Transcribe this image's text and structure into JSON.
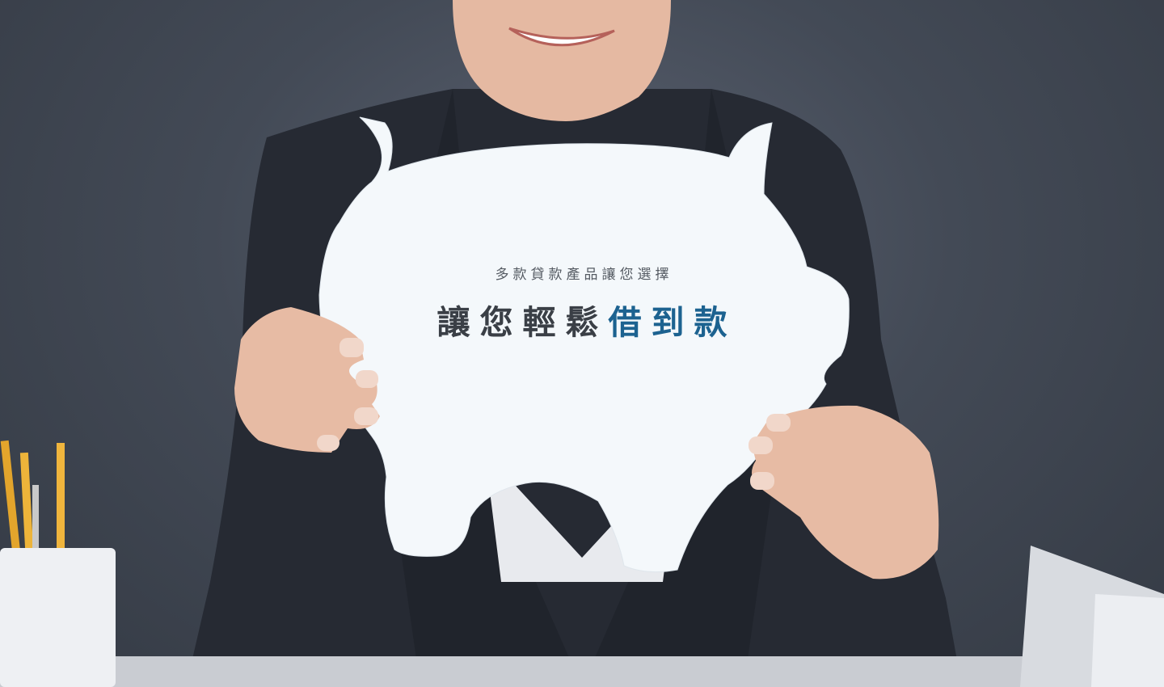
{
  "hero": {
    "subtitle": "多款貸款產品讓您選擇",
    "title_plain": "讓您輕鬆",
    "title_accent": "借到款",
    "colors": {
      "background": "#434a56",
      "subtitle": "#555b63",
      "title": "#3a3f46",
      "accent": "#1c6290"
    },
    "photo": "smiling-woman-holding-piggy-bank-cutout-photo"
  }
}
